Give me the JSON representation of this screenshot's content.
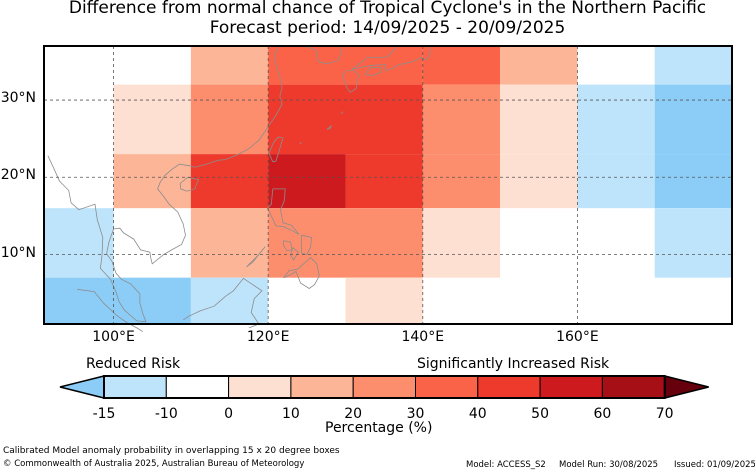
{
  "title": {
    "line1": "Difference from normal chance of Tropical Cyclone's in the Northern Pacific",
    "line2": "Forecast period: 14/09/2025 - 20/09/2025"
  },
  "map": {
    "lon_range": [
      91,
      180
    ],
    "lat_range": [
      1,
      37
    ],
    "lon_ticks": [
      {
        "value": 100,
        "label": "100°E"
      },
      {
        "value": 120,
        "label": "120°E"
      },
      {
        "value": 140,
        "label": "140°E"
      },
      {
        "value": 160,
        "label": "160°E"
      }
    ],
    "lat_ticks": [
      {
        "value": 10,
        "label": "10°N"
      },
      {
        "value": 20,
        "label": "20°N"
      },
      {
        "value": 30,
        "label": "30°N"
      }
    ],
    "grid_style": "dashed",
    "cells": [
      {
        "lon": [
          110,
          120
        ],
        "lat": [
          32,
          37
        ],
        "pct": 15
      },
      {
        "lon": [
          120,
          140
        ],
        "lat": [
          32,
          37
        ],
        "pct": 35
      },
      {
        "lon": [
          140,
          150
        ],
        "lat": [
          32,
          37
        ],
        "pct": 35
      },
      {
        "lon": [
          150,
          160
        ],
        "lat": [
          32,
          37
        ],
        "pct": 15
      },
      {
        "lon": [
          170,
          180
        ],
        "lat": [
          32,
          37
        ],
        "pct": -10
      },
      {
        "lon": [
          100,
          110
        ],
        "lat": [
          23,
          32
        ],
        "pct": 5
      },
      {
        "lon": [
          110,
          120
        ],
        "lat": [
          23,
          32
        ],
        "pct": 25
      },
      {
        "lon": [
          120,
          140
        ],
        "lat": [
          23,
          32
        ],
        "pct": 45
      },
      {
        "lon": [
          140,
          150
        ],
        "lat": [
          23,
          32
        ],
        "pct": 25
      },
      {
        "lon": [
          150,
          160
        ],
        "lat": [
          23,
          32
        ],
        "pct": 5
      },
      {
        "lon": [
          160,
          170
        ],
        "lat": [
          23,
          32
        ],
        "pct": -10
      },
      {
        "lon": [
          170,
          180
        ],
        "lat": [
          23,
          32
        ],
        "pct": -14
      },
      {
        "lon": [
          100,
          110
        ],
        "lat": [
          16,
          23
        ],
        "pct": 15
      },
      {
        "lon": [
          110,
          120
        ],
        "lat": [
          16,
          23
        ],
        "pct": 45
      },
      {
        "lon": [
          120,
          130
        ],
        "lat": [
          16,
          23
        ],
        "pct": 55
      },
      {
        "lon": [
          130,
          140
        ],
        "lat": [
          16,
          23
        ],
        "pct": 45
      },
      {
        "lon": [
          140,
          150
        ],
        "lat": [
          16,
          23
        ],
        "pct": 25
      },
      {
        "lon": [
          150,
          160
        ],
        "lat": [
          16,
          23
        ],
        "pct": 5
      },
      {
        "lon": [
          160,
          170
        ],
        "lat": [
          16,
          23
        ],
        "pct": -10
      },
      {
        "lon": [
          170,
          180
        ],
        "lat": [
          16,
          23
        ],
        "pct": -14
      },
      {
        "lon": [
          91,
          100
        ],
        "lat": [
          7,
          16
        ],
        "pct": -10
      },
      {
        "lon": [
          110,
          120
        ],
        "lat": [
          7,
          16
        ],
        "pct": 15
      },
      {
        "lon": [
          120,
          140
        ],
        "lat": [
          7,
          16
        ],
        "pct": 25
      },
      {
        "lon": [
          140,
          150
        ],
        "lat": [
          7,
          16
        ],
        "pct": 5
      },
      {
        "lon": [
          170,
          180
        ],
        "lat": [
          7,
          16
        ],
        "pct": -10
      },
      {
        "lon": [
          91,
          110
        ],
        "lat": [
          1,
          7
        ],
        "pct": -14
      },
      {
        "lon": [
          110,
          120
        ],
        "lat": [
          1,
          7
        ],
        "pct": -10
      },
      {
        "lon": [
          130,
          140
        ],
        "lat": [
          1,
          7
        ],
        "pct": 5
      }
    ]
  },
  "colorbar": {
    "left_label": "Reduced Risk",
    "right_label": "Significantly Increased Risk",
    "axis_label": "Percentage (%)",
    "ticks": [
      "-15",
      "-10",
      "0",
      "10",
      "20",
      "30",
      "40",
      "50",
      "60",
      "70"
    ],
    "colors": [
      "#bee4fb",
      "#ffffff",
      "#fee0d2",
      "#fcb597",
      "#fc8e6e",
      "#fb6348",
      "#ee3a2c",
      "#cd1a1e",
      "#a50f15"
    ],
    "under_color": "#8ccdf7",
    "over_color": "#67000d"
  },
  "map_colors": {
    "-14": "#8ccdf7",
    "-10": "#bee4fb",
    "5": "#fee0d2",
    "15": "#fcb597",
    "25": "#fc8e6e",
    "35": "#fb6348",
    "45": "#ee3a2c",
    "55": "#cd1a1e",
    "coast": "#8c8c8c",
    "grid": "#555555"
  },
  "footer": {
    "note": "Calibrated Model anomaly probability in overlapping 15 x 20 degree boxes",
    "copyright": "© Commonwealth of Australia 2025, Australian Bureau of Meteorology",
    "model": "Model: ACCESS_S2",
    "run": "Model Run: 30/08/2025",
    "issued": "Issued: 01/09/2025"
  }
}
